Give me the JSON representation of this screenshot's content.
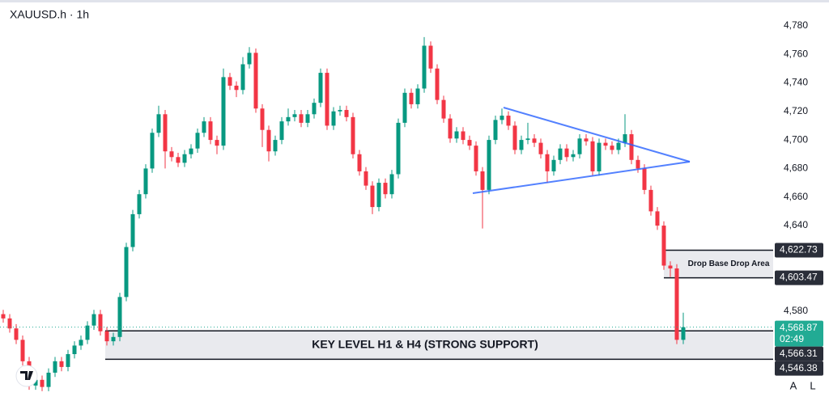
{
  "chart_data": {
    "type": "candlestick",
    "title": "XAUUSD.h · 1h",
    "up_color": "#089981",
    "down_color": "#f23645",
    "open": [
      4578,
      4575,
      4568,
      4560,
      4545,
      4528,
      4532,
      4527,
      4537,
      4545,
      4541,
      4550,
      4556,
      4560,
      4570,
      4578,
      4566,
      4559,
      4562,
      4590,
      4625,
      4648,
      4662,
      4680,
      4705,
      4718,
      4692,
      4688,
      4684,
      4690,
      4694,
      4705,
      4713,
      4700,
      4696,
      4744,
      4738,
      4735,
      4753,
      4761,
      4722,
      4707,
      4692,
      4700,
      4713,
      4716,
      4718,
      4712,
      4718,
      4726,
      4747,
      4710,
      4720,
      4721,
      4716,
      4690,
      4678,
      4668,
      4653,
      4670,
      4662,
      4676,
      4712,
      4733,
      4725,
      4736,
      4766,
      4750,
      4728,
      4715,
      4701,
      4706,
      4700,
      4696,
      4678,
      4665,
      4700,
      4714,
      4717,
      4710,
      4693,
      4700,
      4701,
      4698,
      4690,
      4678,
      4686,
      4694,
      4688,
      4690,
      4701,
      4699,
      4678,
      4698,
      4696,
      4693,
      4698,
      4704,
      4686,
      4680,
      4665,
      4650,
      4640,
      4612,
      4610,
      4560
    ],
    "high": [
      4581,
      4578,
      4571,
      4563,
      4548,
      4535,
      4535,
      4540,
      4548,
      4548,
      4553,
      4559,
      4563,
      4573,
      4581,
      4581,
      4569,
      4565,
      4593,
      4628,
      4651,
      4665,
      4683,
      4708,
      4724,
      4721,
      4695,
      4691,
      4693,
      4697,
      4708,
      4716,
      4716,
      4703,
      4750,
      4747,
      4741,
      4758,
      4765,
      4764,
      4725,
      4710,
      4703,
      4716,
      4722,
      4721,
      4721,
      4721,
      4729,
      4750,
      4750,
      4723,
      4724,
      4724,
      4719,
      4693,
      4681,
      4671,
      4673,
      4673,
      4679,
      4715,
      4736,
      4736,
      4739,
      4772,
      4769,
      4753,
      4731,
      4718,
      4709,
      4709,
      4703,
      4699,
      4681,
      4703,
      4717,
      4722,
      4720,
      4713,
      4703,
      4712,
      4704,
      4701,
      4693,
      4689,
      4697,
      4697,
      4693,
      4704,
      4704,
      4702,
      4701,
      4701,
      4699,
      4701,
      4718,
      4707,
      4689,
      4683,
      4668,
      4653,
      4643,
      4615,
      4613,
      4579
    ],
    "low": [
      4572,
      4565,
      4557,
      4542,
      4525,
      4525,
      4524,
      4524,
      4534,
      4538,
      4538,
      4547,
      4553,
      4557,
      4567,
      4563,
      4556,
      4556,
      4559,
      4587,
      4622,
      4645,
      4659,
      4677,
      4702,
      4680,
      4685,
      4681,
      4681,
      4687,
      4691,
      4702,
      4697,
      4690,
      4693,
      4735,
      4730,
      4732,
      4750,
      4719,
      4695,
      4685,
      4689,
      4697,
      4710,
      4713,
      4709,
      4709,
      4715,
      4723,
      4707,
      4707,
      4717,
      4713,
      4687,
      4675,
      4665,
      4648,
      4650,
      4659,
      4659,
      4673,
      4709,
      4722,
      4722,
      4733,
      4747,
      4725,
      4712,
      4698,
      4698,
      4697,
      4693,
      4675,
      4638,
      4662,
      4697,
      4711,
      4707,
      4690,
      4690,
      4697,
      4695,
      4687,
      4670,
      4675,
      4683,
      4685,
      4685,
      4687,
      4696,
      4675,
      4675,
      4693,
      4690,
      4690,
      4695,
      4683,
      4677,
      4662,
      4647,
      4637,
      4609,
      4604,
      4557,
      4557
    ],
    "close": [
      4575,
      4568,
      4560,
      4545,
      4528,
      4532,
      4527,
      4537,
      4545,
      4541,
      4550,
      4556,
      4560,
      4570,
      4578,
      4566,
      4559,
      4562,
      4590,
      4625,
      4648,
      4662,
      4680,
      4705,
      4718,
      4692,
      4688,
      4684,
      4690,
      4694,
      4705,
      4713,
      4700,
      4696,
      4744,
      4738,
      4735,
      4753,
      4761,
      4722,
      4707,
      4692,
      4700,
      4713,
      4716,
      4718,
      4712,
      4718,
      4726,
      4747,
      4710,
      4720,
      4721,
      4716,
      4690,
      4678,
      4668,
      4653,
      4670,
      4662,
      4676,
      4712,
      4733,
      4725,
      4736,
      4766,
      4750,
      4728,
      4715,
      4701,
      4706,
      4700,
      4696,
      4678,
      4665,
      4700,
      4714,
      4717,
      4710,
      4693,
      4700,
      4701,
      4698,
      4690,
      4678,
      4686,
      4694,
      4688,
      4690,
      4701,
      4699,
      4678,
      4698,
      4696,
      4693,
      4698,
      4704,
      4686,
      4680,
      4665,
      4650,
      4640,
      4612,
      4610,
      4560,
      4568.87
    ],
    "ylim": [
      4520,
      4798
    ],
    "yticks": [
      {
        "value": 4580,
        "label": "4,580"
      },
      {
        "value": 4640,
        "label": "4,640"
      },
      {
        "value": 4660,
        "label": "4,660"
      },
      {
        "value": 4680,
        "label": "4,680"
      },
      {
        "value": 4700,
        "label": "4,700"
      },
      {
        "value": 4720,
        "label": "4,720"
      },
      {
        "value": 4740,
        "label": "4,740"
      },
      {
        "value": 4760,
        "label": "4,760"
      },
      {
        "value": 4780,
        "label": "4,780"
      }
    ],
    "last_price": {
      "value": 4568.87,
      "label": "4,568.87",
      "countdown": "02:49",
      "color": "#22ab94"
    },
    "zones": [
      {
        "name": "Drop Base Drop Area",
        "top": {
          "value": 4622.73,
          "label": "4,622.73"
        },
        "bottom": {
          "value": 4603.47,
          "label": "4,603.47"
        }
      },
      {
        "name": "KEY LEVEL H1 & H4 (STRONG SUPPORT)",
        "top": {
          "value": 4566.31,
          "label": "4,566.31"
        },
        "bottom": {
          "value": 4546.38,
          "label": "4,546.38"
        }
      }
    ]
  },
  "ui": {
    "buttons": [
      "A",
      "L"
    ]
  }
}
